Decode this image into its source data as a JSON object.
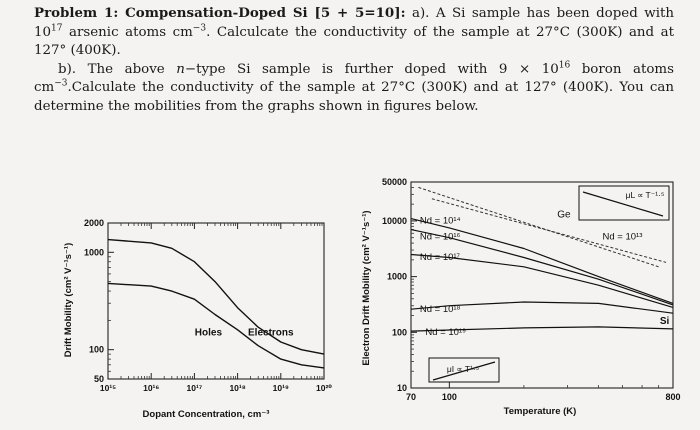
{
  "problem": {
    "title": "Problem 1: Compensation-Doped Si [5 + 5=10]:",
    "part_a": {
      "label": "a).",
      "text_1": "A Si sample has been doped with 10",
      "exp_1": "17",
      "text_2": " arsenic atoms cm",
      "exp_2": "−3",
      "text_3": ". Calculcate the conductivity of the sample at 27°C (300K) and at 127° (400K)."
    },
    "part_b": {
      "label": "b).",
      "text_1": "The above ",
      "italic_n": "n",
      "text_2": "−type Si sample is further doped with 9 × 10",
      "exp_1": "16",
      "text_3": " boron atoms cm",
      "exp_2": "−3",
      "text_4": ".Calculate the conductivity of the sample at 27°C (300K) and at 127° (400K). You can determine the mobilities from the graphs shown in figures below."
    }
  },
  "chart_data": [
    {
      "type": "line",
      "xlabel": "Dopant Concentration, cm⁻³",
      "ylabel": "Drift Mobility (cm² V⁻¹s⁻¹)",
      "x_scale": "log",
      "y_scale": "log",
      "xlim": [
        1000000000000000.0,
        1e+20
      ],
      "ylim": [
        50,
        2000
      ],
      "x_ticks": [
        "10¹⁵",
        "10¹⁶",
        "10¹⁷",
        "10¹⁸",
        "10¹⁹",
        "10²⁰"
      ],
      "y_ticks": [
        "2000",
        "1000",
        "100",
        "50"
      ],
      "series": [
        {
          "name": "Electrons",
          "x": [
            1000000000000000.0,
            1e+16,
            3e+16,
            1e+17,
            3e+17,
            1e+18,
            3e+18,
            1e+19,
            3e+19,
            1e+20
          ],
          "y": [
            1350,
            1250,
            1100,
            800,
            500,
            270,
            170,
            120,
            100,
            90
          ]
        },
        {
          "name": "Holes",
          "x": [
            1000000000000000.0,
            1e+16,
            3e+16,
            1e+17,
            3e+17,
            1e+18,
            3e+18,
            1e+19,
            3e+19,
            1e+20
          ],
          "y": [
            480,
            450,
            400,
            330,
            230,
            160,
            110,
            80,
            70,
            65
          ]
        }
      ]
    },
    {
      "type": "line",
      "xlabel": "Temperature (K)",
      "ylabel": "Electron Drift Mobility (cm² V⁻¹s⁻¹)",
      "x_scale": "log",
      "y_scale": "log",
      "xlim": [
        70,
        800
      ],
      "ylim": [
        10,
        50000
      ],
      "x_ticks": [
        "70",
        "100",
        "800"
      ],
      "y_ticks": [
        "50000",
        "10000",
        "1000",
        "100",
        "10"
      ],
      "annotations": [
        "μL ∝ T⁻¹·⁵",
        "μI ∝ T¹·⁵",
        "Ge",
        "Si",
        "Nd = 10¹³"
      ],
      "series": [
        {
          "name": "Nd = 10¹⁴",
          "x": [
            70,
            100,
            200,
            400,
            800
          ],
          "y": [
            11000,
            7500,
            3200,
            1000,
            330
          ]
        },
        {
          "name": "Nd = 10¹⁶",
          "x": [
            70,
            100,
            200,
            400,
            800
          ],
          "y": [
            7000,
            5000,
            2200,
            900,
            310
          ]
        },
        {
          "name": "Nd = 10¹⁷",
          "x": [
            70,
            100,
            200,
            400,
            800
          ],
          "y": [
            2500,
            2200,
            1500,
            700,
            280
          ]
        },
        {
          "name": "Nd = 10¹⁸",
          "x": [
            70,
            100,
            200,
            400,
            800
          ],
          "y": [
            260,
            300,
            350,
            330,
            220
          ]
        },
        {
          "name": "Nd = 10¹⁹",
          "x": [
            70,
            100,
            200,
            400,
            800
          ],
          "y": [
            105,
            110,
            120,
            125,
            115
          ]
        }
      ]
    }
  ]
}
